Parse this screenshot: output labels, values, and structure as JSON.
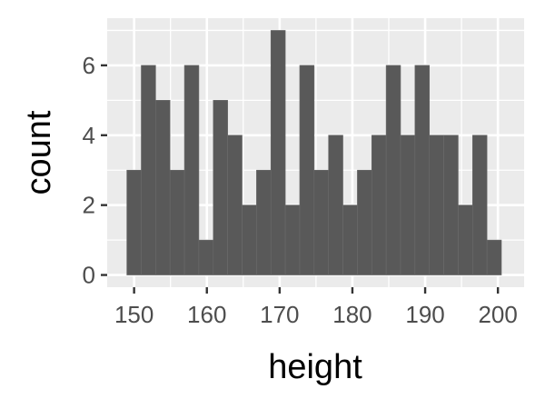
{
  "chart_data": {
    "type": "bar",
    "xlabel": "height",
    "ylabel": "count",
    "xlim": [
      146.3,
      203.6
    ],
    "ylim": [
      -0.35,
      7.35
    ],
    "x_ticks": [
      150,
      160,
      170,
      180,
      190,
      200
    ],
    "y_ticks": [
      0,
      2,
      4,
      6
    ],
    "x_minor_ticks": [
      155,
      165,
      175,
      185,
      195
    ],
    "y_minor_ticks": [
      1,
      3,
      5,
      7
    ],
    "bin_width": 1.98,
    "bin_start": 149.0,
    "values": [
      3,
      6,
      5,
      3,
      6,
      1,
      5,
      4,
      2,
      3,
      7,
      2,
      6,
      3,
      4,
      2,
      3,
      4,
      6,
      4,
      6,
      4,
      4,
      2,
      4,
      1
    ],
    "grid": true,
    "colors": {
      "panel_background": "#ebebeb",
      "grid_line": "#ffffff",
      "bar_fill": "#595959",
      "bar_outline": "#6b6b6b",
      "tick_mark": "#333333"
    }
  }
}
